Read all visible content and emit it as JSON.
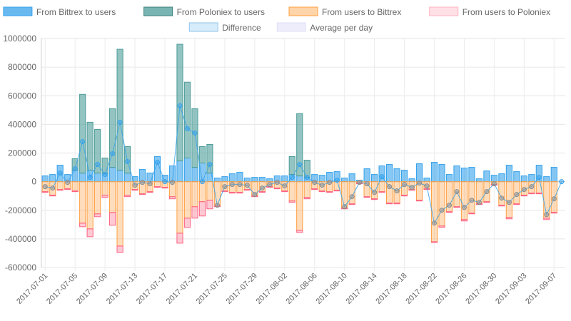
{
  "chart_data": {
    "type": "bar",
    "legend_position": "top",
    "grid": true,
    "ylim": [
      -600000,
      1000000
    ],
    "y_ticks": [
      1000000,
      800000,
      600000,
      400000,
      200000,
      0,
      -200000,
      -400000,
      -600000
    ],
    "y_tick_labels": [
      "1000000",
      "800000",
      "600000",
      "400000",
      "200000",
      "0",
      "-200000",
      "-400000",
      "-600000"
    ],
    "x_tick_labels": [
      "2017-07-01",
      "2017-07-05",
      "2017-07-09",
      "2017-07-13",
      "2017-07-17",
      "2017-07-21",
      "2017-07-25",
      "2017-07-29",
      "2017-08-02",
      "2017-08-06",
      "2017-08-10",
      "2017-08-14",
      "2017-08-18",
      "2017-08-22",
      "2017-08-26",
      "2017-08-30",
      "2017-09-03",
      "2017-09-07"
    ],
    "categories": [
      "2017-07-01",
      "2017-07-02",
      "2017-07-03",
      "2017-07-04",
      "2017-07-05",
      "2017-07-06",
      "2017-07-07",
      "2017-07-08",
      "2017-07-09",
      "2017-07-10",
      "2017-07-11",
      "2017-07-12",
      "2017-07-13",
      "2017-07-14",
      "2017-07-15",
      "2017-07-16",
      "2017-07-17",
      "2017-07-18",
      "2017-07-19",
      "2017-07-20",
      "2017-07-21",
      "2017-07-22",
      "2017-07-23",
      "2017-07-24",
      "2017-07-25",
      "2017-07-26",
      "2017-07-27",
      "2017-07-28",
      "2017-07-29",
      "2017-07-30",
      "2017-07-31",
      "2017-08-01",
      "2017-08-02",
      "2017-08-03",
      "2017-08-04",
      "2017-08-05",
      "2017-08-06",
      "2017-08-07",
      "2017-08-08",
      "2017-08-09",
      "2017-08-10",
      "2017-08-11",
      "2017-08-12",
      "2017-08-13",
      "2017-08-14",
      "2017-08-15",
      "2017-08-16",
      "2017-08-17",
      "2017-08-18",
      "2017-08-19",
      "2017-08-20",
      "2017-08-21",
      "2017-08-22",
      "2017-08-23",
      "2017-08-24",
      "2017-08-25",
      "2017-08-26",
      "2017-08-27",
      "2017-08-28",
      "2017-08-29",
      "2017-08-30",
      "2017-08-31",
      "2017-09-01",
      "2017-09-02",
      "2017-09-03",
      "2017-09-04",
      "2017-09-05",
      "2017-09-06",
      "2017-09-07",
      "2017-09-08"
    ],
    "series": [
      {
        "name": "From Bittrex to users",
        "color": "#36a2eb",
        "values": [
          40000,
          50000,
          115000,
          50000,
          80000,
          60000,
          80000,
          60000,
          55000,
          100000,
          80000,
          60000,
          35000,
          85000,
          60000,
          175000,
          45000,
          110000,
          145000,
          165000,
          100000,
          130000,
          60000,
          25000,
          35000,
          55000,
          65000,
          25000,
          30000,
          30000,
          20000,
          40000,
          40000,
          50000,
          40000,
          30000,
          50000,
          45000,
          65000,
          70000,
          25000,
          55000,
          10000,
          90000,
          50000,
          110000,
          120000,
          90000,
          80000,
          20000,
          125000,
          25000,
          135000,
          120000,
          50000,
          110000,
          95000,
          100000,
          20000,
          75000,
          45000,
          55000,
          115000,
          70000,
          40000,
          50000,
          115000,
          35000,
          100000,
          0
        ]
      },
      {
        "name": "From Poloniex to users",
        "color": "#4b9c98",
        "values": [
          0,
          0,
          0,
          0,
          80000,
          550000,
          335000,
          305000,
          110000,
          410000,
          845000,
          185000,
          0,
          0,
          0,
          0,
          0,
          0,
          815000,
          530000,
          410000,
          115000,
          200000,
          0,
          0,
          0,
          0,
          0,
          0,
          0,
          0,
          0,
          0,
          125000,
          435000,
          120000,
          0,
          0,
          0,
          0,
          0,
          0,
          0,
          0,
          0,
          0,
          0,
          0,
          0,
          0,
          0,
          0,
          0,
          0,
          0,
          0,
          0,
          0,
          0,
          0,
          0,
          0,
          0,
          0,
          0,
          0,
          0,
          0,
          0,
          0
        ]
      },
      {
        "name": "From users to Bittrex",
        "color": "#ff9f40",
        "values": [
          -70000,
          -95000,
          -55000,
          -50000,
          -65000,
          -290000,
          -330000,
          -225000,
          -95000,
          -215000,
          -450000,
          -95000,
          -55000,
          -85000,
          -70000,
          -35000,
          -40000,
          -105000,
          -360000,
          -255000,
          -175000,
          -140000,
          -130000,
          -170000,
          -65000,
          -75000,
          -75000,
          -55000,
          -100000,
          -70000,
          -35000,
          -45000,
          -65000,
          -135000,
          -340000,
          -110000,
          -50000,
          -65000,
          -70000,
          -60000,
          -185000,
          -155000,
          -10000,
          -105000,
          -120000,
          -70000,
          -150000,
          -150000,
          -95000,
          -55000,
          -130000,
          -50000,
          -420000,
          -310000,
          -210000,
          -175000,
          -265000,
          -220000,
          -155000,
          -140000,
          -20000,
          -165000,
          -250000,
          -155000,
          -95000,
          -80000,
          -80000,
          -255000,
          -215000,
          0
        ]
      },
      {
        "name": "From users to Poloniex",
        "color": "#ff6384",
        "values": [
          -5000,
          -5000,
          -5000,
          -5000,
          -5000,
          -25000,
          -55000,
          -20000,
          -15000,
          -90000,
          -45000,
          -10000,
          -5000,
          -5000,
          -5000,
          -5000,
          -5000,
          -15000,
          -70000,
          -65000,
          -80000,
          -100000,
          -60000,
          -5000,
          -5000,
          -5000,
          -5000,
          -5000,
          -5000,
          -5000,
          -5000,
          -5000,
          -5000,
          -10000,
          -15000,
          -10000,
          -5000,
          -5000,
          -5000,
          -5000,
          -5000,
          -5000,
          -5000,
          -5000,
          -5000,
          -5000,
          -5000,
          -5000,
          -5000,
          -5000,
          -5000,
          -5000,
          -5000,
          -10000,
          -5000,
          -5000,
          -10000,
          -5000,
          -5000,
          -5000,
          -5000,
          -5000,
          -10000,
          -5000,
          -5000,
          -5000,
          -5000,
          -10000,
          -5000,
          0
        ]
      },
      {
        "name": "Difference",
        "color": "#36a2eb",
        "type": "line",
        "values": [
          -35000,
          -45000,
          60000,
          -5000,
          90000,
          280000,
          30000,
          120000,
          50000,
          195000,
          415000,
          140000,
          -25000,
          -5000,
          -15000,
          135000,
          0,
          -5000,
          530000,
          370000,
          340000,
          0,
          120000,
          -165000,
          -35000,
          -20000,
          -20000,
          -25000,
          -90000,
          -45000,
          -20000,
          -5000,
          -30000,
          30000,
          120000,
          30000,
          -5000,
          -25000,
          -5000,
          10000,
          -175000,
          -105000,
          -5000,
          -15000,
          -75000,
          35000,
          -35000,
          -65000,
          -20000,
          -40000,
          -10000,
          -30000,
          -290000,
          -200000,
          -165000,
          -70000,
          -180000,
          -130000,
          -145000,
          -70000,
          -15000,
          -115000,
          -145000,
          -90000,
          -55000,
          -35000,
          30000,
          -230000,
          -120000,
          0
        ]
      },
      {
        "name": "Average per day",
        "color": "#9b9bf0",
        "type": "line",
        "values": [
          -35000,
          -45000,
          60000,
          -5000,
          90000,
          280000,
          30000,
          120000,
          50000,
          195000,
          415000,
          140000,
          -25000,
          -5000,
          -15000,
          135000,
          0,
          -5000,
          530000,
          370000,
          340000,
          0,
          120000,
          -165000,
          -35000,
          -20000,
          -20000,
          -25000,
          -90000,
          -45000,
          -20000,
          -5000,
          -30000,
          30000,
          120000,
          30000,
          -5000,
          -25000,
          -5000,
          10000,
          -175000,
          -105000,
          -5000,
          -15000,
          -75000,
          35000,
          -35000,
          -65000,
          -20000,
          -40000,
          -10000,
          -30000,
          -290000,
          -200000,
          -165000,
          -70000,
          -180000,
          -130000,
          -145000,
          -70000,
          -15000,
          -115000,
          -145000,
          -90000,
          -55000,
          -35000,
          30000,
          -230000,
          -120000,
          0
        ]
      }
    ]
  }
}
